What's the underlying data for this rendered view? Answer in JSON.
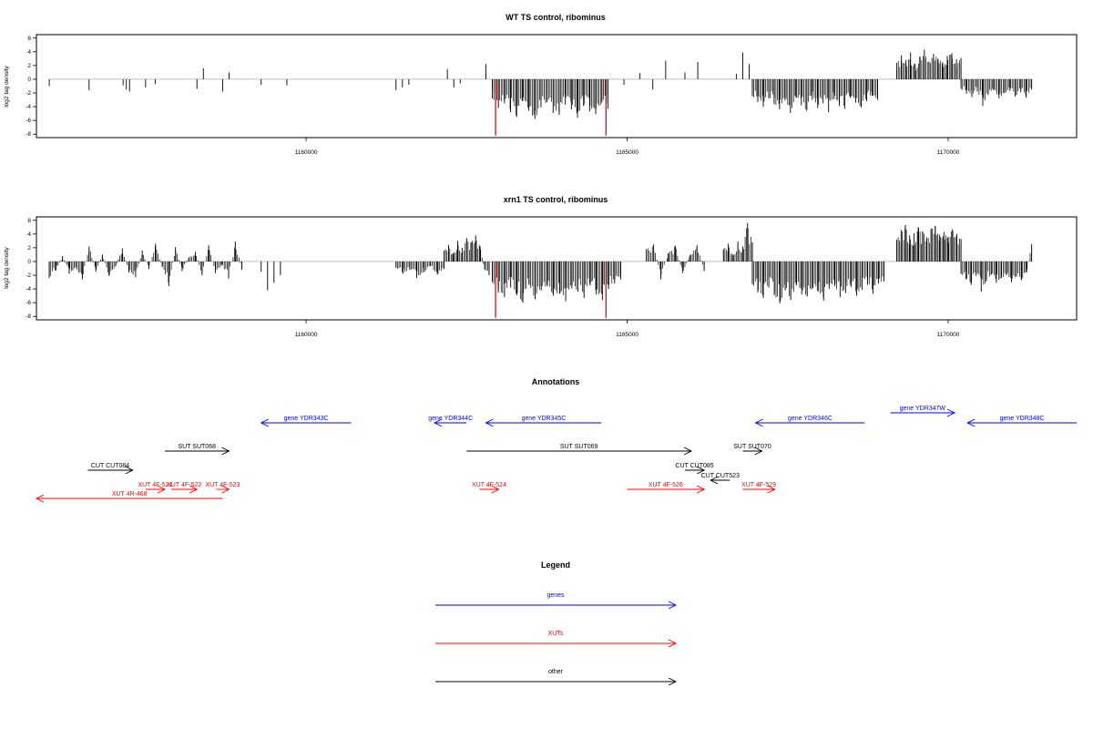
{
  "chart_data": [
    {
      "type": "bar",
      "title": "WT TS control, ribominus",
      "ylabel": "log2 tag density",
      "xlabel": "",
      "xlim": [
        1155800,
        1172000
      ],
      "ylim": [
        -8.5,
        6.5
      ],
      "yticks": [
        6,
        4,
        2,
        0,
        -2,
        -4,
        -6,
        -8
      ],
      "xticks": [
        1160000,
        1165000,
        1170000
      ],
      "bar_color": "#000000",
      "highlight_color": "#cc0000",
      "clusters": [
        {
          "start": 1156000,
          "end": 1156020,
          "values": [
            -1.0
          ]
        },
        {
          "start": 1156620,
          "end": 1156640,
          "values": [
            -1.6
          ]
        },
        {
          "start": 1157150,
          "end": 1157250,
          "values": [
            -0.9,
            -1.5,
            -1.8
          ]
        },
        {
          "start": 1157500,
          "end": 1157650,
          "values": [
            -1.2,
            -0.7
          ]
        },
        {
          "start": 1158300,
          "end": 1158400,
          "values": [
            -1.4,
            1.6
          ]
        },
        {
          "start": 1158700,
          "end": 1158800,
          "values": [
            -1.8,
            1.0
          ]
        },
        {
          "start": 1159300,
          "end": 1159320,
          "values": [
            -0.8
          ]
        },
        {
          "start": 1159700,
          "end": 1159720,
          "values": [
            -0.9
          ]
        },
        {
          "start": 1161400,
          "end": 1161600,
          "values": [
            -1.6,
            -1.2,
            -0.8
          ]
        },
        {
          "start": 1162200,
          "end": 1162400,
          "values": [
            1.5,
            -1.2,
            -0.6
          ]
        },
        {
          "start": 1162800,
          "end": 1162820,
          "values": [
            2.2
          ]
        },
        {
          "start": 1162900,
          "end": 1164700,
          "values": [
            -2.8,
            -4.2,
            -3.5,
            -4.8,
            -5.5,
            -3.2,
            -4.6,
            -5.8,
            -4.1,
            -3.3,
            -4.9,
            -5.2,
            -3.7,
            -4.4,
            -5.6,
            -3.9,
            -4.7,
            -5.1,
            -3.4,
            -4.3
          ]
        },
        {
          "start": 1164950,
          "end": 1164970,
          "values": [
            -0.8
          ]
        },
        {
          "start": 1165200,
          "end": 1165400,
          "values": [
            0.9,
            -1.5
          ]
        },
        {
          "start": 1165600,
          "end": 1165620,
          "values": [
            2.7
          ]
        },
        {
          "start": 1165900,
          "end": 1166100,
          "values": [
            1.0,
            2.5
          ]
        },
        {
          "start": 1166700,
          "end": 1166900,
          "values": [
            0.8,
            3.9,
            2.2
          ]
        },
        {
          "start": 1166950,
          "end": 1168900,
          "values": [
            -2.5,
            -3.3,
            -4.0,
            -2.8,
            -3.6,
            -4.4,
            -3.1,
            -4.9,
            -2.6,
            -3.8,
            -4.6,
            -3.0,
            -4.2,
            -3.5,
            -4.8,
            -2.9,
            -3.9,
            -4.3,
            -2.7,
            -3.4,
            -4.1,
            -3.2,
            -2.4,
            -3.0
          ]
        },
        {
          "start": 1169200,
          "end": 1170200,
          "values": [
            2.4,
            3.5,
            2.8,
            3.9,
            2.2,
            3.3,
            4.3,
            2.6,
            3.7,
            3.0,
            2.5,
            3.4,
            3.8,
            2.9,
            3.1
          ]
        },
        {
          "start": 1170200,
          "end": 1171300,
          "values": [
            -1.4,
            -2.1,
            -2.6,
            -1.8,
            -3.9,
            -2.3,
            -1.6,
            -2.8,
            -2.0,
            -1.7,
            -2.5,
            -1.9,
            -2.7,
            -1.5
          ]
        }
      ],
      "highlights": [
        {
          "x": 1162950,
          "value": -8.2
        },
        {
          "x": 1164670,
          "value": -8.2
        }
      ]
    },
    {
      "type": "bar",
      "title": "xrn1 TS control, ribominus",
      "ylabel": "log2 tag density",
      "xlabel": "",
      "xlim": [
        1155800,
        1172000
      ],
      "ylim": [
        -8.5,
        6.5
      ],
      "yticks": [
        6,
        4,
        2,
        0,
        -2,
        -4,
        -6,
        -8
      ],
      "xticks": [
        1160000,
        1165000,
        1170000
      ],
      "bar_color": "#000000",
      "highlight_color": "#cc0000",
      "clusters": [
        {
          "start": 1156000,
          "end": 1159000,
          "values": [
            -2.4,
            -1.3,
            0.8,
            -1.8,
            -0.9,
            -2.6,
            2.2,
            -1.5,
            1.0,
            -2.1,
            -0.7,
            1.9,
            -1.6,
            -2.3,
            1.6,
            -1.1,
            2.6,
            -0.8,
            -3.6,
            2.1,
            -1.4,
            0.6,
            1.4,
            -2.0,
            2.4,
            -1.7,
            -0.6,
            -2.5,
            2.9,
            -1.2
          ]
        },
        {
          "start": 1159300,
          "end": 1159600,
          "values": [
            -1.5,
            -4.2,
            -3.1,
            -2.0
          ]
        },
        {
          "start": 1161400,
          "end": 1162150,
          "values": [
            -0.9,
            -1.8,
            -1.2,
            -2.4,
            -1.6,
            -0.7,
            -1.9,
            -1.1
          ]
        },
        {
          "start": 1162150,
          "end": 1162850,
          "values": [
            1.6,
            2.4,
            1.1,
            3.0,
            2.0,
            3.4,
            2.8,
            3.8,
            2.2,
            -1.2,
            -2.0
          ]
        },
        {
          "start": 1162900,
          "end": 1164900,
          "values": [
            -3.0,
            -4.5,
            -5.2,
            -3.8,
            -4.9,
            -6.0,
            -3.4,
            -5.5,
            -4.2,
            -3.6,
            -5.0,
            -4.7,
            -5.8,
            -3.9,
            -4.4,
            -5.3,
            -3.5,
            -4.8,
            -5.6,
            -4.0,
            -3.2,
            -2.6
          ]
        },
        {
          "start": 1165300,
          "end": 1166200,
          "values": [
            1.8,
            2.5,
            -2.6,
            1.2,
            2.3,
            -1.7,
            0.9,
            2.4,
            -1.4
          ]
        },
        {
          "start": 1166500,
          "end": 1166950,
          "values": [
            1.8,
            2.6,
            0.9,
            2.9,
            2.2,
            5.6,
            2.8
          ]
        },
        {
          "start": 1166950,
          "end": 1169000,
          "values": [
            -3.3,
            -4.5,
            -5.3,
            -3.8,
            -4.9,
            -6.1,
            -4.2,
            -5.6,
            -3.5,
            -4.8,
            -5.1,
            -3.9,
            -4.4,
            -5.7,
            -4.0,
            -3.6,
            -5.2,
            -4.6,
            -3.7,
            -5.0,
            -4.1,
            -3.4,
            -4.7,
            -3.2,
            -2.9
          ]
        },
        {
          "start": 1169200,
          "end": 1170200,
          "values": [
            3.2,
            4.6,
            5.3,
            3.8,
            4.1,
            5.0,
            4.4,
            3.5,
            4.8,
            5.2,
            3.9,
            4.3,
            3.6,
            4.7,
            4.0,
            3.3
          ]
        },
        {
          "start": 1170200,
          "end": 1171300,
          "values": [
            -1.8,
            -2.6,
            -3.4,
            -2.1,
            -4.4,
            -2.9,
            -1.9,
            -3.1,
            -2.4,
            -2.0,
            -3.0,
            -2.2,
            -2.7,
            -1.6,
            2.5
          ]
        }
      ],
      "highlights": [
        {
          "x": 1162950,
          "value": -8.2
        },
        {
          "x": 1164670,
          "value": -8.2
        }
      ]
    }
  ],
  "annotations": {
    "title": "Annotations",
    "xlim": [
      1155800,
      1172000
    ],
    "features": [
      {
        "label": "gene YDR343C",
        "kind": "gene",
        "start": 1159300,
        "end": 1160700,
        "dir": "-",
        "track": 1
      },
      {
        "label": "gene YDR344C",
        "kind": "gene",
        "start": 1162000,
        "end": 1162500,
        "dir": "-",
        "track": 1
      },
      {
        "label": "gene YDR345C",
        "kind": "gene",
        "start": 1162800,
        "end": 1164600,
        "dir": "-",
        "track": 1
      },
      {
        "label": "gene YDR346C",
        "kind": "gene",
        "start": 1167000,
        "end": 1168700,
        "dir": "-",
        "track": 1
      },
      {
        "label": "gene YDR347W",
        "kind": "gene",
        "start": 1169100,
        "end": 1170100,
        "dir": "+",
        "track": 0
      },
      {
        "label": "gene YDR348C",
        "kind": "gene",
        "start": 1170300,
        "end": 1172000,
        "dir": "-",
        "track": 1
      },
      {
        "label": "SUT SUT068",
        "kind": "other",
        "start": 1157800,
        "end": 1158800,
        "dir": "+",
        "track": 2
      },
      {
        "label": "SUT SUT069",
        "kind": "other",
        "start": 1162500,
        "end": 1166000,
        "dir": "+",
        "track": 2
      },
      {
        "label": "SUT SUT070",
        "kind": "other",
        "start": 1166800,
        "end": 1167100,
        "dir": "+",
        "track": 2
      },
      {
        "label": "CUT CUT084",
        "kind": "other",
        "start": 1156600,
        "end": 1157300,
        "dir": "+",
        "track": 3
      },
      {
        "label": "CUT CUT085",
        "kind": "other",
        "start": 1165900,
        "end": 1166200,
        "dir": "+",
        "track": 3
      },
      {
        "label": "CUT CUT523",
        "kind": "other",
        "start": 1166300,
        "end": 1166600,
        "dir": "-",
        "track": 4
      },
      {
        "label": "XUT 4F-521",
        "kind": "xut",
        "start": 1157500,
        "end": 1157800,
        "dir": "+",
        "track": 5
      },
      {
        "label": "XUT 4F-522",
        "kind": "xut",
        "start": 1157900,
        "end": 1158300,
        "dir": "+",
        "track": 5
      },
      {
        "label": "XUT 4F-523",
        "kind": "xut",
        "start": 1158600,
        "end": 1158800,
        "dir": "+",
        "track": 5
      },
      {
        "label": "XUT 4F-524",
        "kind": "xut",
        "start": 1162700,
        "end": 1163000,
        "dir": "+",
        "track": 5
      },
      {
        "label": "XUT 4F-526",
        "kind": "xut",
        "start": 1165000,
        "end": 1166200,
        "dir": "+",
        "track": 5
      },
      {
        "label": "XUT 4F-529",
        "kind": "xut",
        "start": 1166800,
        "end": 1167300,
        "dir": "+",
        "track": 5
      },
      {
        "label": "XUT 4R-468",
        "kind": "xut",
        "start": 1155800,
        "end": 1158700,
        "dir": "-",
        "track": 6
      }
    ]
  },
  "legend": {
    "title": "Legend",
    "items": [
      {
        "label": "genes",
        "color": "#0000ff"
      },
      {
        "label": "XUTs",
        "color": "#ff0000"
      },
      {
        "label": "other",
        "color": "#000000"
      }
    ]
  },
  "colors": {
    "gene": "#0000ff",
    "xut": "#ff0000",
    "other": "#000000"
  }
}
